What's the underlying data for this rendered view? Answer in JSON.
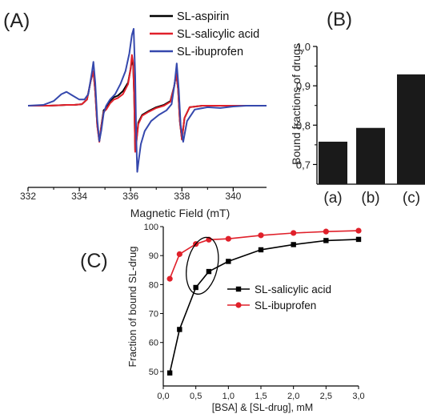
{
  "panels": [
    {
      "letter": "(A)",
      "chart_data": {
        "type": "line",
        "title": "",
        "xlabel": "Magnetic Field (mT)",
        "ylabel": "",
        "xlim": [
          332,
          341.3
        ],
        "ylim": [
          -1.1,
          1.1
        ],
        "x_ticks": [
          332,
          334,
          336,
          338,
          340
        ],
        "legend_position": "top-right",
        "grid": false,
        "series": [
          {
            "name": "SL-aspirin",
            "color": "#000000",
            "x": [
              332.0,
              332.8,
              333.2,
              333.5,
              333.8,
              334.1,
              334.3,
              334.45,
              334.55,
              334.62,
              334.7,
              334.78,
              334.86,
              334.95,
              335.05,
              335.2,
              335.35,
              335.5,
              335.7,
              335.9,
              336.0,
              336.05,
              336.1,
              336.14,
              336.18,
              336.22,
              336.3,
              336.45,
              336.7,
              337.0,
              337.3,
              337.55,
              337.7,
              337.78,
              337.85,
              337.92,
              338.0,
              338.1,
              338.3,
              338.8,
              339.5,
              340.5,
              341.3
            ],
            "y": [
              0.0,
              0.0,
              0.005,
              0.01,
              0.01,
              0.02,
              0.08,
              0.33,
              0.45,
              0.18,
              -0.25,
              -0.46,
              -0.26,
              -0.06,
              -0.03,
              0.06,
              0.11,
              0.13,
              0.19,
              0.3,
              0.48,
              0.6,
              0.52,
              0.1,
              -0.58,
              -0.48,
              -0.22,
              -0.12,
              -0.07,
              -0.02,
              0.01,
              0.06,
              0.25,
              0.42,
              0.22,
              -0.2,
              -0.44,
              -0.16,
              -0.02,
              0.0,
              0.0,
              0.0,
              0.0
            ]
          },
          {
            "name": "SL-salicylic acid",
            "color": "#e0202a",
            "x": [
              332.0,
              332.8,
              333.2,
              333.5,
              333.8,
              334.1,
              334.3,
              334.45,
              334.55,
              334.62,
              334.7,
              334.78,
              334.86,
              334.95,
              335.05,
              335.2,
              335.35,
              335.5,
              335.7,
              335.9,
              336.0,
              336.05,
              336.1,
              336.14,
              336.18,
              336.22,
              336.3,
              336.45,
              336.7,
              337.0,
              337.3,
              337.55,
              337.7,
              337.78,
              337.85,
              337.92,
              338.0,
              338.1,
              338.3,
              338.8,
              339.5,
              340.5,
              341.3
            ],
            "y": [
              0.0,
              0.0,
              0.005,
              0.01,
              0.01,
              0.02,
              0.08,
              0.33,
              0.45,
              0.18,
              -0.26,
              -0.47,
              -0.27,
              -0.08,
              -0.05,
              0.03,
              0.08,
              0.1,
              0.15,
              0.28,
              0.48,
              0.66,
              0.56,
              0.1,
              -0.6,
              -0.5,
              -0.24,
              -0.13,
              -0.08,
              -0.03,
              0.0,
              0.05,
              0.25,
              0.42,
              0.22,
              -0.2,
              -0.44,
              -0.16,
              -0.02,
              0.0,
              0.0,
              0.0,
              0.0
            ]
          },
          {
            "name": "SL-ibuprofen",
            "color": "#3548ad",
            "x": [
              332.0,
              332.6,
              333.0,
              333.3,
              333.5,
              333.7,
              334.0,
              334.2,
              334.35,
              334.5,
              334.55,
              334.62,
              334.7,
              334.78,
              334.86,
              334.95,
              335.05,
              335.2,
              335.4,
              335.6,
              335.8,
              335.95,
              336.05,
              336.12,
              336.18,
              336.22,
              336.26,
              336.32,
              336.4,
              336.55,
              336.8,
              337.1,
              337.4,
              337.6,
              337.72,
              337.8,
              337.88,
              337.95,
              338.05,
              338.2,
              338.5,
              339.0,
              339.5,
              340.0,
              340.5,
              341.3
            ],
            "y": [
              0.0,
              0.01,
              0.06,
              0.15,
              0.18,
              0.14,
              0.08,
              0.08,
              0.15,
              0.45,
              0.57,
              0.3,
              -0.18,
              -0.46,
              -0.32,
              -0.1,
              0.0,
              0.08,
              0.15,
              0.28,
              0.45,
              0.68,
              0.92,
              1.0,
              0.4,
              -0.4,
              -0.86,
              -0.7,
              -0.5,
              -0.33,
              -0.2,
              -0.12,
              -0.06,
              0.02,
              0.3,
              0.55,
              0.2,
              -0.25,
              -0.47,
              -0.2,
              -0.05,
              -0.02,
              -0.03,
              -0.01,
              0.0,
              0.0
            ]
          }
        ]
      }
    },
    {
      "letter": "(B)",
      "chart_data": {
        "type": "bar",
        "title": "",
        "xlabel": "",
        "ylabel": "Bound fractions of drugs",
        "categories": [
          "(a)",
          "(b)",
          "(c)"
        ],
        "values": [
          0.758,
          0.793,
          0.929
        ],
        "ylim": [
          0.65,
          1.0
        ],
        "y_ticks": [
          "0,7",
          "0,8",
          "0,9",
          "1,0"
        ],
        "y_tick_values": [
          0.7,
          0.8,
          0.9,
          1.0
        ],
        "bar_color": "#1a1a1a",
        "grid": false
      }
    },
    {
      "letter": "(C)",
      "chart_data": {
        "type": "line",
        "title": "",
        "xlabel": "[BSA] & [SL-drug], mM",
        "ylabel": "Fraction of bound SL-drug",
        "xlim": [
          0.0,
          3.0
        ],
        "ylim": [
          45,
          100
        ],
        "x_ticks": [
          "0,0",
          "0,5",
          "1,0",
          "1,5",
          "2,0",
          "2,5",
          "3,0"
        ],
        "x_tick_values": [
          0.0,
          0.5,
          1.0,
          1.5,
          2.0,
          2.5,
          3.0
        ],
        "y_ticks": [
          "50",
          "60",
          "70",
          "80",
          "90",
          "100"
        ],
        "y_tick_values": [
          50,
          60,
          70,
          80,
          90,
          100
        ],
        "legend_position": "center-right",
        "grid": false,
        "series": [
          {
            "name": "SL-salicylic acid",
            "color": "#000000",
            "marker": "square",
            "x": [
              0.1,
              0.25,
              0.5,
              0.7,
              1.0,
              1.5,
              2.0,
              2.5,
              3.0
            ],
            "y": [
              49.5,
              64.5,
              79,
              84.5,
              88,
              92,
              93.8,
              95.2,
              95.6
            ]
          },
          {
            "name": "SL-ibuprofen",
            "color": "#e0202a",
            "marker": "circle",
            "x": [
              0.1,
              0.25,
              0.5,
              0.7,
              1.0,
              1.5,
              2.0,
              2.5,
              3.0
            ],
            "y": [
              82,
              90.5,
              94,
              95.5,
              95.8,
              97,
              97.8,
              98.3,
              98.6
            ]
          }
        ]
      }
    }
  ]
}
